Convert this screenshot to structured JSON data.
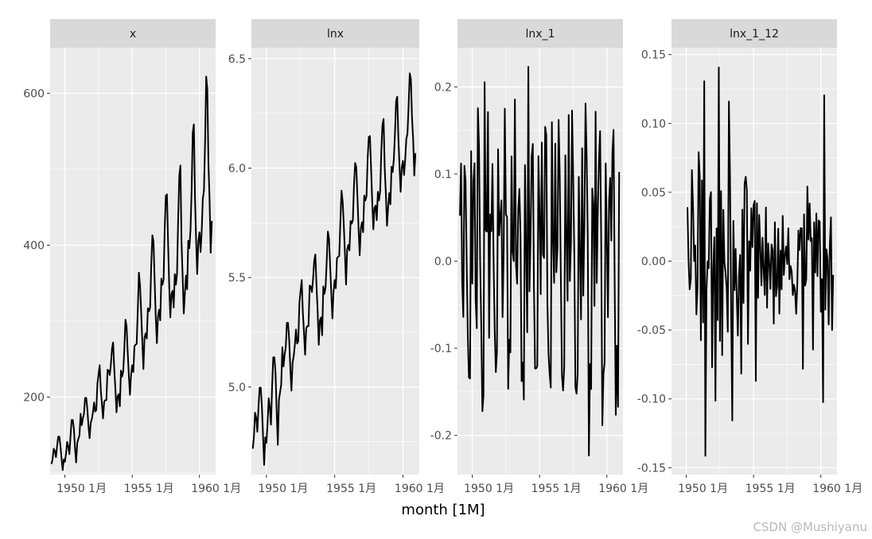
{
  "chart_data": {
    "type": "line",
    "xlabel": "month [1M]",
    "x_ticks": [
      "1950 1月",
      "1955 1月",
      "1960 1月"
    ],
    "panels": [
      {
        "title": "x",
        "ylim": [
          98,
          660
        ],
        "yticks": [
          200,
          400,
          600
        ],
        "ytick_labels": [
          "200",
          "400",
          "600"
        ],
        "series": {
          "name": "x",
          "start": 1949.0,
          "step_months": 1,
          "values": [
            112,
            118,
            132,
            129,
            121,
            135,
            148,
            148,
            136,
            119,
            104,
            118,
            115,
            126,
            141,
            135,
            125,
            149,
            170,
            170,
            158,
            133,
            114,
            140,
            145,
            150,
            178,
            163,
            172,
            178,
            199,
            199,
            184,
            162,
            146,
            166,
            171,
            180,
            193,
            181,
            183,
            218,
            230,
            242,
            209,
            191,
            172,
            194,
            196,
            196,
            236,
            235,
            229,
            243,
            264,
            272,
            237,
            211,
            180,
            201,
            204,
            188,
            235,
            227,
            234,
            264,
            302,
            293,
            259,
            229,
            203,
            229,
            242,
            233,
            267,
            269,
            270,
            315,
            364,
            347,
            312,
            274,
            237,
            278,
            284,
            277,
            317,
            313,
            318,
            374,
            413,
            405,
            355,
            306,
            271,
            306,
            315,
            301,
            356,
            348,
            355,
            422,
            465,
            467,
            404,
            347,
            305,
            336,
            340,
            318,
            362,
            348,
            363,
            435,
            491,
            505,
            404,
            359,
            310,
            337,
            360,
            342,
            406,
            396,
            420,
            472,
            548,
            559,
            463,
            407,
            362,
            405,
            417,
            391,
            419,
            461,
            472,
            535,
            622,
            606,
            508,
            461,
            390,
            432
          ]
        }
      },
      {
        "title": "lnx",
        "ylim": [
          4.6,
          6.55
        ],
        "yticks": [
          5.0,
          5.5,
          6.0,
          6.5
        ],
        "ytick_labels": [
          "5.0",
          "5.5",
          "6.0",
          "6.5"
        ],
        "series": {
          "name": "lnx",
          "derive": "log",
          "start": 1949.0,
          "step_months": 1
        }
      },
      {
        "title": "lnx_1",
        "ylim": [
          -0.245,
          0.245
        ],
        "yticks": [
          -0.2,
          -0.1,
          0.0,
          0.1,
          0.2
        ],
        "ytick_labels": [
          "-0.2",
          "-0.1",
          "0.0",
          "0.1",
          "0.2"
        ],
        "series": {
          "name": "lnx_1",
          "derive": "diff1",
          "start": 1949.0833,
          "step_months": 1
        }
      },
      {
        "title": "lnx_1_12",
        "ylim": [
          -0.155,
          0.155
        ],
        "yticks": [
          -0.15,
          -0.1,
          -0.05,
          0.0,
          0.05,
          0.1,
          0.15
        ],
        "ytick_labels": [
          "-0.15",
          "-0.10",
          "-0.05",
          "0.00",
          "0.05",
          "0.10",
          "0.15"
        ],
        "series": {
          "name": "lnx_1_12",
          "derive": "diff1_12",
          "start": 1950.0833,
          "step_months": 1
        }
      }
    ],
    "x_range": [
      1948.9,
      1961.2
    ],
    "x_tick_positions": [
      1950,
      1955,
      1960
    ]
  },
  "watermark": "CSDN @Mushiyanu",
  "colors": {
    "panel_bg": "#ebebeb",
    "strip_bg": "#d9d9d9",
    "grid_major": "#ffffff",
    "line": "#000000",
    "tick": "#333333"
  }
}
